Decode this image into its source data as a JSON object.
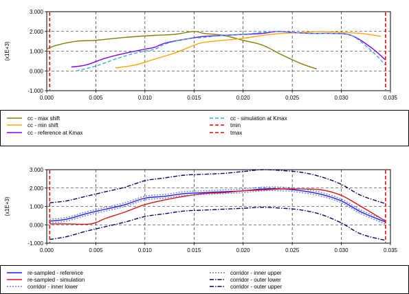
{
  "chart_data": [
    {
      "type": "line",
      "ylabel": "(x1E+3)",
      "xlim": [
        0.0,
        0.035
      ],
      "ylim": [
        -1.0,
        3.0
      ],
      "grid": true,
      "legend_placement": "below",
      "x_ticks": [
        "0.000",
        "0.005",
        "0.010",
        "0.015",
        "0.020",
        "0.025",
        "0.030",
        "0.035"
      ],
      "y_ticks": [
        "-1.000",
        "0.000",
        "1.000",
        "2.000",
        "3.000"
      ],
      "series": [
        {
          "name": "cc - max shift",
          "color": "#808000",
          "style": "solid",
          "points": [
            [
              0.0,
              1.1
            ],
            [
              0.001,
              1.3
            ],
            [
              0.003,
              1.5
            ],
            [
              0.005,
              1.55
            ],
            [
              0.008,
              1.7
            ],
            [
              0.011,
              1.8
            ],
            [
              0.013,
              1.85
            ],
            [
              0.015,
              2.0
            ],
            [
              0.016,
              1.9
            ],
            [
              0.018,
              1.8
            ],
            [
              0.02,
              1.55
            ],
            [
              0.022,
              1.3
            ],
            [
              0.024,
              0.8
            ],
            [
              0.026,
              0.35
            ],
            [
              0.0275,
              0.1
            ]
          ]
        },
        {
          "name": "cc - min shift",
          "color": "#FFA500",
          "style": "solid",
          "points": [
            [
              0.007,
              0.15
            ],
            [
              0.009,
              0.3
            ],
            [
              0.011,
              0.6
            ],
            [
              0.013,
              0.9
            ],
            [
              0.015,
              1.3
            ],
            [
              0.016,
              1.45
            ],
            [
              0.018,
              1.55
            ],
            [
              0.02,
              1.65
            ],
            [
              0.022,
              1.8
            ],
            [
              0.024,
              1.9
            ],
            [
              0.026,
              1.95
            ],
            [
              0.028,
              2.0
            ],
            [
              0.03,
              1.95
            ],
            [
              0.032,
              1.9
            ],
            [
              0.034,
              1.75
            ]
          ]
        },
        {
          "name": "cc - reference at Kmax",
          "color": "#8000FF",
          "style": "solid",
          "points": [
            [
              0.0025,
              0.2
            ],
            [
              0.004,
              0.3
            ],
            [
              0.006,
              0.65
            ],
            [
              0.008,
              0.9
            ],
            [
              0.01,
              1.1
            ],
            [
              0.011,
              1.2
            ],
            [
              0.012,
              1.4
            ],
            [
              0.014,
              1.6
            ],
            [
              0.016,
              1.75
            ],
            [
              0.018,
              1.8
            ],
            [
              0.02,
              1.85
            ],
            [
              0.022,
              1.9
            ],
            [
              0.0235,
              2.0
            ],
            [
              0.025,
              1.95
            ],
            [
              0.027,
              1.9
            ],
            [
              0.029,
              1.9
            ],
            [
              0.031,
              1.8
            ],
            [
              0.033,
              1.2
            ],
            [
              0.0345,
              0.55
            ]
          ]
        },
        {
          "name": "cc - simulation at Kmax",
          "color": "#33AADD",
          "style": "dashed",
          "points": [
            [
              0.003,
              0.0
            ],
            [
              0.005,
              0.25
            ],
            [
              0.007,
              0.6
            ],
            [
              0.009,
              0.9
            ],
            [
              0.011,
              1.1
            ],
            [
              0.012,
              1.35
            ],
            [
              0.014,
              1.6
            ],
            [
              0.016,
              1.7
            ],
            [
              0.018,
              1.8
            ],
            [
              0.02,
              1.85
            ],
            [
              0.022,
              1.95
            ],
            [
              0.0235,
              2.0
            ],
            [
              0.025,
              1.95
            ],
            [
              0.027,
              1.9
            ],
            [
              0.029,
              1.9
            ],
            [
              0.031,
              1.8
            ],
            [
              0.033,
              1.05
            ],
            [
              0.0345,
              0.3
            ]
          ]
        },
        {
          "name": "tmin",
          "color": "#FF0000",
          "style": "dashed",
          "vline": 0.0003
        },
        {
          "name": "tmax",
          "color": "#FF0000",
          "style": "dashed",
          "vline": 0.0345
        }
      ]
    },
    {
      "type": "line",
      "ylabel": "(x1E+3)",
      "xlim": [
        0.0,
        0.035
      ],
      "ylim": [
        -1.0,
        3.0
      ],
      "grid": true,
      "legend_placement": "below",
      "x_ticks": [
        "0.000",
        "0.005",
        "0.010",
        "0.015",
        "0.020",
        "0.025",
        "0.030",
        "0.035"
      ],
      "y_ticks": [
        "-1.000",
        "0.000",
        "1.000",
        "2.000",
        "3.000"
      ],
      "series": [
        {
          "name": "re-sampled - reference",
          "color": "#1A1AFF",
          "style": "solid",
          "points": [
            [
              0.0003,
              0.2
            ],
            [
              0.002,
              0.3
            ],
            [
              0.004,
              0.6
            ],
            [
              0.006,
              0.85
            ],
            [
              0.008,
              1.1
            ],
            [
              0.01,
              1.45
            ],
            [
              0.012,
              1.55
            ],
            [
              0.014,
              1.7
            ],
            [
              0.016,
              1.75
            ],
            [
              0.018,
              1.8
            ],
            [
              0.02,
              1.85
            ],
            [
              0.022,
              1.95
            ],
            [
              0.024,
              1.95
            ],
            [
              0.026,
              1.85
            ],
            [
              0.028,
              1.65
            ],
            [
              0.03,
              1.3
            ],
            [
              0.032,
              0.7
            ],
            [
              0.0345,
              0.15
            ]
          ]
        },
        {
          "name": "re-sampled - simulation",
          "color": "#E01010",
          "style": "solid",
          "points": [
            [
              0.0003,
              0.05
            ],
            [
              0.002,
              0.05
            ],
            [
              0.0045,
              0.05
            ],
            [
              0.006,
              0.35
            ],
            [
              0.008,
              0.7
            ],
            [
              0.01,
              1.1
            ],
            [
              0.012,
              1.35
            ],
            [
              0.014,
              1.55
            ],
            [
              0.016,
              1.7
            ],
            [
              0.018,
              1.75
            ],
            [
              0.02,
              1.85
            ],
            [
              0.022,
              1.9
            ],
            [
              0.024,
              1.95
            ],
            [
              0.026,
              1.95
            ],
            [
              0.028,
              1.9
            ],
            [
              0.03,
              1.6
            ],
            [
              0.032,
              1.0
            ],
            [
              0.0345,
              0.2
            ]
          ]
        },
        {
          "name": "corridor - inner lower",
          "color": "#6A7BE0",
          "style": "dotted",
          "points": [
            [
              0.0003,
              0.1
            ],
            [
              0.002,
              0.2
            ],
            [
              0.004,
              0.5
            ],
            [
              0.006,
              0.75
            ],
            [
              0.008,
              1.0
            ],
            [
              0.01,
              1.35
            ],
            [
              0.012,
              1.45
            ],
            [
              0.014,
              1.6
            ],
            [
              0.016,
              1.65
            ],
            [
              0.018,
              1.7
            ],
            [
              0.02,
              1.75
            ],
            [
              0.022,
              1.85
            ],
            [
              0.024,
              1.85
            ],
            [
              0.026,
              1.75
            ],
            [
              0.028,
              1.55
            ],
            [
              0.03,
              1.2
            ],
            [
              0.032,
              0.6
            ],
            [
              0.0345,
              0.05
            ]
          ]
        },
        {
          "name": "corridor - inner upper",
          "color": "#6A7BE0",
          "style": "dotted",
          "points": [
            [
              0.0003,
              0.3
            ],
            [
              0.002,
              0.4
            ],
            [
              0.004,
              0.7
            ],
            [
              0.006,
              0.95
            ],
            [
              0.008,
              1.2
            ],
            [
              0.01,
              1.55
            ],
            [
              0.012,
              1.65
            ],
            [
              0.014,
              1.8
            ],
            [
              0.016,
              1.85
            ],
            [
              0.018,
              1.9
            ],
            [
              0.02,
              1.95
            ],
            [
              0.022,
              2.05
            ],
            [
              0.024,
              2.05
            ],
            [
              0.026,
              1.95
            ],
            [
              0.028,
              1.75
            ],
            [
              0.03,
              1.4
            ],
            [
              0.032,
              0.8
            ],
            [
              0.0345,
              0.25
            ]
          ]
        },
        {
          "name": "corridor - outer lower",
          "color": "#00006E",
          "style": "dashdot",
          "points": [
            [
              0.0003,
              -0.8
            ],
            [
              0.002,
              -0.65
            ],
            [
              0.004,
              -0.35
            ],
            [
              0.006,
              -0.1
            ],
            [
              0.008,
              0.15
            ],
            [
              0.01,
              0.45
            ],
            [
              0.012,
              0.6
            ],
            [
              0.014,
              0.75
            ],
            [
              0.016,
              0.8
            ],
            [
              0.018,
              0.85
            ],
            [
              0.02,
              0.9
            ],
            [
              0.022,
              0.95
            ],
            [
              0.024,
              0.9
            ],
            [
              0.026,
              0.8
            ],
            [
              0.028,
              0.55
            ],
            [
              0.03,
              0.1
            ],
            [
              0.032,
              -0.5
            ],
            [
              0.0345,
              -0.85
            ]
          ]
        },
        {
          "name": "corridor - outer upper",
          "color": "#00006E",
          "style": "dashdot",
          "points": [
            [
              0.0003,
              1.2
            ],
            [
              0.002,
              1.3
            ],
            [
              0.004,
              1.55
            ],
            [
              0.006,
              1.8
            ],
            [
              0.008,
              2.05
            ],
            [
              0.01,
              2.4
            ],
            [
              0.012,
              2.55
            ],
            [
              0.014,
              2.7
            ],
            [
              0.016,
              2.75
            ],
            [
              0.018,
              2.8
            ],
            [
              0.02,
              2.9
            ],
            [
              0.022,
              3.0
            ],
            [
              0.024,
              2.95
            ],
            [
              0.026,
              2.85
            ],
            [
              0.028,
              2.6
            ],
            [
              0.03,
              2.2
            ],
            [
              0.032,
              1.6
            ],
            [
              0.0345,
              1.15
            ]
          ]
        },
        {
          "name": "",
          "color": "#FF0000",
          "style": "dashed",
          "vline": 0.0003
        },
        {
          "name": "",
          "color": "#FF0000",
          "style": "dashed",
          "vline": 0.0345
        }
      ]
    }
  ],
  "legends": [
    [
      {
        "label": "cc - max shift",
        "color": "#808000",
        "style": "solid",
        "col": 0
      },
      {
        "label": "cc - min shift",
        "color": "#FFA500",
        "style": "solid",
        "col": 0
      },
      {
        "label": "cc - reference at Kmax",
        "color": "#8000FF",
        "style": "solid",
        "col": 0
      },
      {
        "label": "cc - simulation at Kmax",
        "color": "#33AADD",
        "style": "dashed",
        "col": 1
      },
      {
        "label": "tmin",
        "color": "#FF0000",
        "style": "dashed",
        "col": 1
      },
      {
        "label": "tmax",
        "color": "#FF0000",
        "style": "dashed",
        "col": 1
      }
    ],
    [
      {
        "label": "re-sampled - reference",
        "color": "#1A1AFF",
        "style": "solid",
        "col": 0
      },
      {
        "label": "re-sampled - simulation",
        "color": "#E01010",
        "style": "solid",
        "col": 0
      },
      {
        "label": "corridor - inner lower",
        "color": "#6A7BE0",
        "style": "dotted",
        "col": 0
      },
      {
        "label": "corridor - inner upper",
        "color": "#6A7BE0",
        "style": "dotted",
        "col": 1
      },
      {
        "label": "corridor - outer lower",
        "color": "#00006E",
        "style": "dashdot",
        "col": 1
      },
      {
        "label": "corridor - outer upper",
        "color": "#00006E",
        "style": "dashdot",
        "col": 1
      }
    ]
  ]
}
